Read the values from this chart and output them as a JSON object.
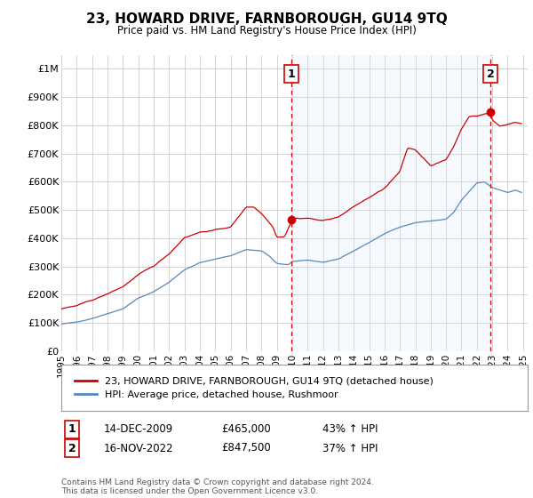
{
  "title": "23, HOWARD DRIVE, FARNBOROUGH, GU14 9TQ",
  "subtitle": "Price paid vs. HM Land Registry's House Price Index (HPI)",
  "ylabel_ticks": [
    "£0",
    "£100K",
    "£200K",
    "£300K",
    "£400K",
    "£500K",
    "£600K",
    "£700K",
    "£800K",
    "£900K",
    "£1M"
  ],
  "ytick_vals": [
    0,
    100000,
    200000,
    300000,
    400000,
    500000,
    600000,
    700000,
    800000,
    900000,
    1000000
  ],
  "ylim": [
    0,
    1050000
  ],
  "xlim_start": 1995.0,
  "xlim_end": 2025.3,
  "marker1_x": 2009.96,
  "marker1_y": 465000,
  "marker2_x": 2022.88,
  "marker2_y": 847500,
  "legend_label_red": "23, HOWARD DRIVE, FARNBOROUGH, GU14 9TQ (detached house)",
  "legend_label_blue": "HPI: Average price, detached house, Rushmoor",
  "annot1_label": "1",
  "annot1_date": "14-DEC-2009",
  "annot1_price": "£465,000",
  "annot1_hpi": "43% ↑ HPI",
  "annot2_label": "2",
  "annot2_date": "16-NOV-2022",
  "annot2_price": "£847,500",
  "annot2_hpi": "37% ↑ HPI",
  "footer": "Contains HM Land Registry data © Crown copyright and database right 2024.\nThis data is licensed under the Open Government Licence v3.0.",
  "red_color": "#cc0000",
  "blue_color": "#5588bb",
  "shade_color": "#ddeeff",
  "grid_color": "#cccccc",
  "background_color": "#ffffff",
  "xtick_years": [
    1995,
    1996,
    1997,
    1998,
    1999,
    2000,
    2001,
    2002,
    2003,
    2004,
    2005,
    2006,
    2007,
    2008,
    2009,
    2010,
    2011,
    2012,
    2013,
    2014,
    2015,
    2016,
    2017,
    2018,
    2019,
    2020,
    2021,
    2022,
    2023,
    2024,
    2025
  ]
}
